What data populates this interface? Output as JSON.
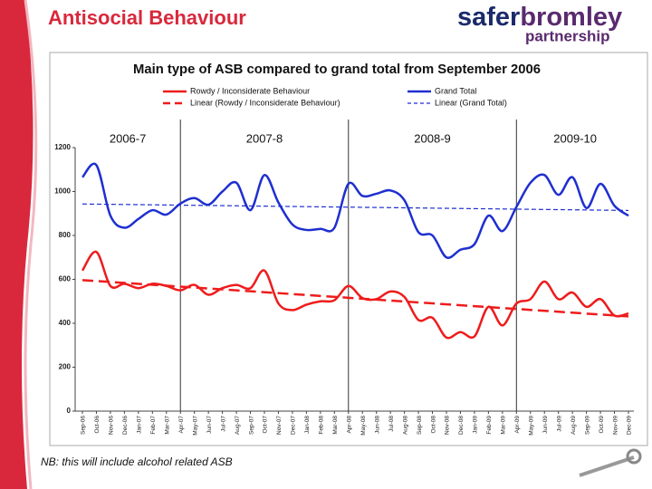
{
  "header": {
    "title": "Antisocial Behaviour",
    "logo": [
      "safer",
      "bromley"
    ],
    "logo_sub": "partnership"
  },
  "note": "NB: this will include alcohol related ASB",
  "chart_data": {
    "type": "line",
    "title": "Main type of ASB compared to grand total from September 2006",
    "categories": [
      "Sep-06",
      "Oct-06",
      "Nov-06",
      "Dec-06",
      "Jan-07",
      "Feb-07",
      "Mar-07",
      "Apr-07",
      "May-07",
      "Jun-07",
      "Jul-07",
      "Aug-07",
      "Sep-07",
      "Oct-07",
      "Nov-07",
      "Dec-07",
      "Jan-08",
      "Feb-08",
      "Mar-08",
      "Apr-08",
      "May-08",
      "Jun-08",
      "Jul-08",
      "Aug-08",
      "Sep-08",
      "Oct-08",
      "Nov-08",
      "Dec-08",
      "Jan-09",
      "Feb-09",
      "Mar-09",
      "Apr-09",
      "May-09",
      "Jun-09",
      "Jul-09",
      "Aug-09",
      "Sep-09",
      "Oct-09",
      "Nov-09",
      "Dec-09"
    ],
    "series": [
      {
        "name": "Rowdy / Inconsiderate Behaviour",
        "trend_name": "Linear (Rowdy / Inconsiderate Behaviour)",
        "color": "#ee1c1c",
        "values": [
          640,
          725,
          570,
          580,
          560,
          580,
          570,
          550,
          575,
          530,
          560,
          575,
          560,
          640,
          490,
          460,
          485,
          500,
          505,
          570,
          515,
          510,
          545,
          520,
          415,
          425,
          335,
          360,
          340,
          475,
          390,
          490,
          510,
          590,
          510,
          540,
          475,
          510,
          435,
          445
        ]
      },
      {
        "name": "Grand Total",
        "trend_name": "Linear (Grand Total)",
        "color": "#1f2fd0",
        "values": [
          1065,
          1120,
          890,
          835,
          875,
          915,
          895,
          945,
          970,
          940,
          1000,
          1040,
          915,
          1075,
          950,
          850,
          825,
          830,
          835,
          1035,
          980,
          990,
          1005,
          960,
          815,
          800,
          700,
          735,
          760,
          890,
          820,
          930,
          1040,
          1075,
          985,
          1065,
          925,
          1035,
          935,
          890
        ]
      }
    ],
    "periods": [
      {
        "label": "2006-7",
        "start": "Sep-06"
      },
      {
        "label": "2007-8",
        "start": "Apr-07"
      },
      {
        "label": "2008-9",
        "start": "Apr-08"
      },
      {
        "label": "2009-10",
        "start": "Apr-09"
      }
    ],
    "ylim": [
      0,
      1200
    ],
    "yticks": [
      0,
      200,
      400,
      600,
      800,
      1000,
      1200
    ]
  }
}
